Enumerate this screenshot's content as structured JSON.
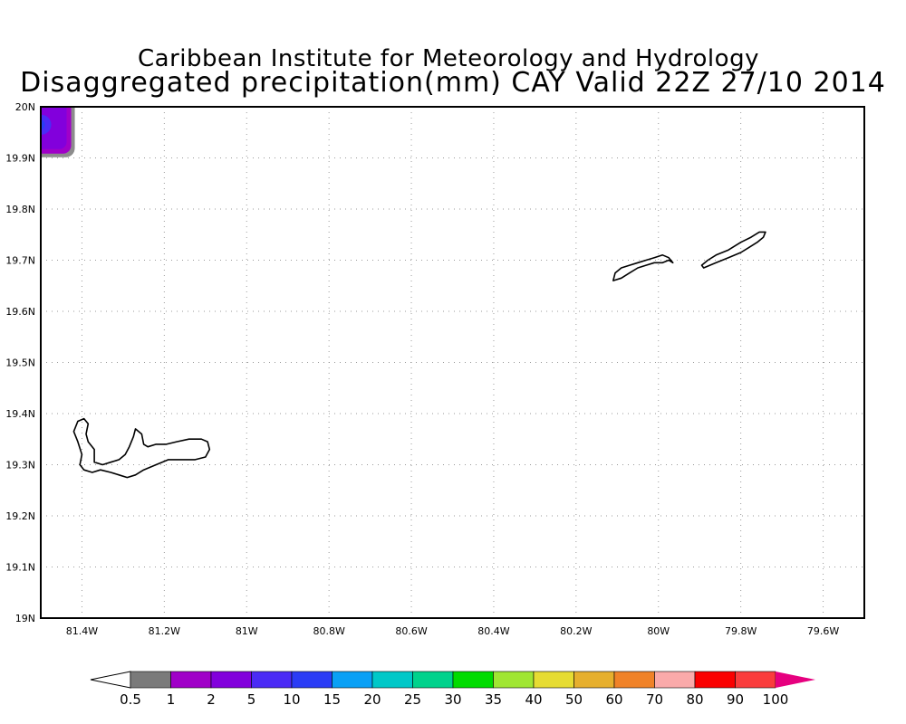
{
  "header": {
    "institute": "Caribbean Institute for Meteorology and Hydrology",
    "product": "Disaggregated precipitation(mm) CAY Valid 22Z 27/10 2014"
  },
  "map": {
    "lon_range": [
      -81.5,
      -79.5
    ],
    "lat_range": [
      19.0,
      20.0
    ],
    "grid": "dotted",
    "x_ticks": [
      {
        "lon": -81.4,
        "label": "81.4W"
      },
      {
        "lon": -81.2,
        "label": "81.2W"
      },
      {
        "lon": -81.0,
        "label": "81W"
      },
      {
        "lon": -80.8,
        "label": "80.8W"
      },
      {
        "lon": -80.6,
        "label": "80.6W"
      },
      {
        "lon": -80.4,
        "label": "80.4W"
      },
      {
        "lon": -80.2,
        "label": "80.2W"
      },
      {
        "lon": -80.0,
        "label": "80W"
      },
      {
        "lon": -79.8,
        "label": "79.8W"
      },
      {
        "lon": -79.6,
        "label": "79.6W"
      }
    ],
    "y_ticks": [
      {
        "lat": 20.0,
        "label": "20N"
      },
      {
        "lat": 19.9,
        "label": "19.9N"
      },
      {
        "lat": 19.8,
        "label": "19.8N"
      },
      {
        "lat": 19.7,
        "label": "19.7N"
      },
      {
        "lat": 19.6,
        "label": "19.6N"
      },
      {
        "lat": 19.5,
        "label": "19.5N"
      },
      {
        "lat": 19.4,
        "label": "19.4N"
      },
      {
        "lat": 19.3,
        "label": "19.3N"
      },
      {
        "lat": 19.2,
        "label": "19.2N"
      },
      {
        "lat": 19.1,
        "label": "19.1N"
      },
      {
        "lat": 19.0,
        "label": "19N"
      }
    ],
    "islands": [
      {
        "name": "grand-cayman",
        "outline": [
          [
            -81.41,
            19.385
          ],
          [
            -81.395,
            19.39
          ],
          [
            -81.385,
            19.38
          ],
          [
            -81.39,
            19.36
          ],
          [
            -81.385,
            19.345
          ],
          [
            -81.37,
            19.33
          ],
          [
            -81.37,
            19.305
          ],
          [
            -81.35,
            19.3
          ],
          [
            -81.33,
            19.305
          ],
          [
            -81.31,
            19.31
          ],
          [
            -81.295,
            19.32
          ],
          [
            -81.285,
            19.335
          ],
          [
            -81.275,
            19.355
          ],
          [
            -81.27,
            19.37
          ],
          [
            -81.255,
            19.36
          ],
          [
            -81.25,
            19.34
          ],
          [
            -81.24,
            19.335
          ],
          [
            -81.22,
            19.34
          ],
          [
            -81.195,
            19.34
          ],
          [
            -81.17,
            19.345
          ],
          [
            -81.14,
            19.35
          ],
          [
            -81.11,
            19.35
          ],
          [
            -81.095,
            19.345
          ],
          [
            -81.09,
            19.33
          ],
          [
            -81.1,
            19.315
          ],
          [
            -81.125,
            19.31
          ],
          [
            -81.16,
            19.31
          ],
          [
            -81.19,
            19.31
          ],
          [
            -81.22,
            19.3
          ],
          [
            -81.25,
            19.29
          ],
          [
            -81.27,
            19.28
          ],
          [
            -81.29,
            19.275
          ],
          [
            -81.31,
            19.28
          ],
          [
            -81.33,
            19.285
          ],
          [
            -81.355,
            19.29
          ],
          [
            -81.375,
            19.285
          ],
          [
            -81.395,
            19.29
          ],
          [
            -81.405,
            19.3
          ],
          [
            -81.4,
            19.32
          ],
          [
            -81.41,
            19.345
          ],
          [
            -81.42,
            19.365
          ],
          [
            -81.41,
            19.385
          ]
        ]
      },
      {
        "name": "little-cayman",
        "outline": [
          [
            -80.11,
            19.66
          ],
          [
            -80.09,
            19.665
          ],
          [
            -80.07,
            19.675
          ],
          [
            -80.05,
            19.685
          ],
          [
            -80.03,
            19.69
          ],
          [
            -80.01,
            19.695
          ],
          [
            -79.99,
            19.695
          ],
          [
            -79.975,
            19.7
          ],
          [
            -79.965,
            19.695
          ],
          [
            -79.975,
            19.705
          ],
          [
            -79.99,
            19.71
          ],
          [
            -80.01,
            19.705
          ],
          [
            -80.03,
            19.7
          ],
          [
            -80.05,
            19.695
          ],
          [
            -80.07,
            19.69
          ],
          [
            -80.09,
            19.685
          ],
          [
            -80.105,
            19.675
          ],
          [
            -80.11,
            19.66
          ]
        ]
      },
      {
        "name": "cayman-brac",
        "outline": [
          [
            -79.89,
            19.685
          ],
          [
            -79.86,
            19.695
          ],
          [
            -79.83,
            19.705
          ],
          [
            -79.8,
            19.715
          ],
          [
            -79.78,
            19.725
          ],
          [
            -79.76,
            19.735
          ],
          [
            -79.745,
            19.745
          ],
          [
            -79.74,
            19.755
          ],
          [
            -79.755,
            19.755
          ],
          [
            -79.775,
            19.745
          ],
          [
            -79.8,
            19.735
          ],
          [
            -79.83,
            19.72
          ],
          [
            -79.86,
            19.71
          ],
          [
            -79.88,
            19.7
          ],
          [
            -79.895,
            19.69
          ],
          [
            -79.89,
            19.685
          ]
        ]
      }
    ],
    "precip_cell": {
      "lon": -81.49,
      "lat": 19.965,
      "value_mm": 5,
      "color": "#7744ee"
    }
  },
  "colorbar": {
    "colors": [
      "#ffffff",
      "#7a7a7a",
      "#a000c8",
      "#8200dc",
      "#4b2bf5",
      "#2b3cf5",
      "#0aa0f5",
      "#00c8c8",
      "#00d28c",
      "#00dc00",
      "#a0e632",
      "#e6dc32",
      "#e6af2d",
      "#f08228",
      "#faaaaa",
      "#fa0000",
      "#fa3c3c",
      "#e6007f"
    ],
    "labels": [
      "0.5",
      "1",
      "2",
      "5",
      "10",
      "15",
      "20",
      "25",
      "30",
      "35",
      "40",
      "50",
      "60",
      "70",
      "80",
      "90",
      "100"
    ]
  }
}
